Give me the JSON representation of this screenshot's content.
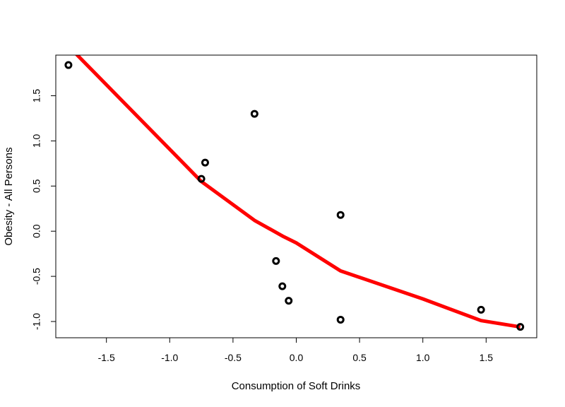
{
  "chart_data": {
    "type": "scatter",
    "title": "",
    "xlabel": "Consumption of Soft Drinks",
    "ylabel": "Obesity - All Persons",
    "xlim": [
      -1.9,
      1.9
    ],
    "ylim": [
      -1.18,
      1.95
    ],
    "x_ticks": [
      -1.5,
      -1.0,
      -0.5,
      0.0,
      0.5,
      1.0,
      1.5
    ],
    "x_tick_labels": [
      "-1.5",
      "-1.0",
      "-0.5",
      "0.0",
      "0.5",
      "1.0",
      "1.5"
    ],
    "y_ticks": [
      -1.0,
      -0.5,
      0.0,
      0.5,
      1.0,
      1.5
    ],
    "y_tick_labels": [
      "-1.0",
      "-0.5",
      "0.0",
      "0.5",
      "1.0",
      "1.5"
    ],
    "grid": false,
    "points": {
      "x": [
        -1.8,
        -0.75,
        -0.72,
        -0.33,
        -0.16,
        -0.11,
        -0.06,
        0.35,
        0.35,
        1.46,
        1.77
      ],
      "y": [
        1.84,
        0.58,
        0.76,
        1.3,
        -0.33,
        -0.61,
        -0.77,
        0.18,
        -0.98,
        -0.87,
        -1.06
      ],
      "color": "#000000"
    },
    "smooth_line": {
      "x": [
        -1.8,
        -0.75,
        -0.33,
        -0.1,
        0.0,
        0.35,
        1.0,
        1.46,
        1.77
      ],
      "y": [
        2.05,
        0.55,
        0.12,
        -0.06,
        -0.13,
        -0.44,
        -0.75,
        -0.99,
        -1.06
      ],
      "color": "#ff0000"
    }
  }
}
